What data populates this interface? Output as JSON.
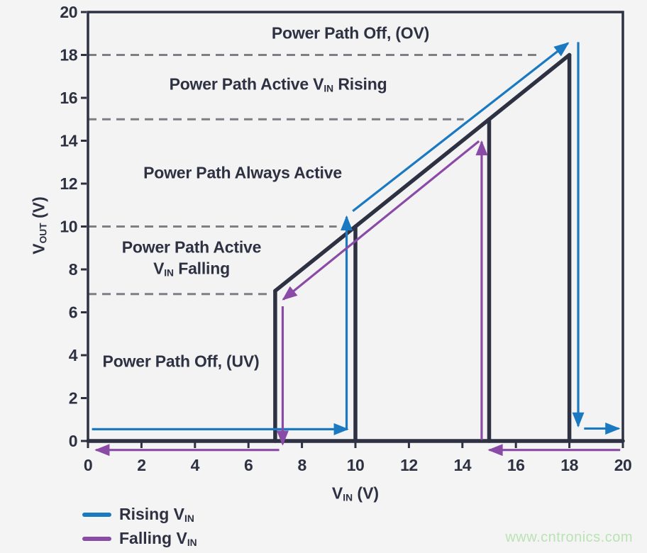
{
  "colors": {
    "navy": "#2d3142",
    "rising": "#1a79c0",
    "falling": "#8a4ba6",
    "dashed": "#7d7f85",
    "plot_bg": "#f4f3f4",
    "page_bg": "#f5f4f5",
    "watermark": "#b9e3b4"
  },
  "watermark": {
    "text": "www.cntronics.com"
  },
  "axis": {
    "x_label": {
      "pre": "V",
      "sub": "IN",
      "post": " (V)"
    },
    "y_label": {
      "pre": "V",
      "sub": "OUT",
      "post": " (V)"
    }
  },
  "annotations": {
    "ov": {
      "text": "Power Path Off, (OV)"
    },
    "rising": {
      "pre": "Power Path Active V",
      "sub": "IN",
      "post": " Rising"
    },
    "always": {
      "text": "Power Path Always Active"
    },
    "falling_l1": {
      "text": "Power Path Active"
    },
    "falling_l2": {
      "pre": "V",
      "sub": "IN",
      "post": " Falling"
    },
    "uv": {
      "text": "Power Path Off, (UV)"
    }
  },
  "legend": {
    "items": [
      {
        "key": "rising",
        "pre": "Rising V",
        "sub": "IN"
      },
      {
        "key": "falling",
        "pre": "Falling V",
        "sub": "IN"
      }
    ]
  },
  "chart_data": {
    "type": "line",
    "title": "",
    "xlabel": "VIN (V)",
    "ylabel": "VOUT (V)",
    "xlim": [
      0,
      20
    ],
    "ylim": [
      0,
      20
    ],
    "xticks": [
      0,
      2,
      4,
      6,
      8,
      10,
      12,
      14,
      16,
      18,
      20
    ],
    "yticks": [
      0,
      2,
      4,
      6,
      8,
      10,
      12,
      14,
      16,
      18,
      20
    ],
    "grid": "horizontal dashed threshold lines only",
    "legend_position": "bottom-left",
    "thresholds": {
      "uv_falling_V": 7,
      "uv_rising_V": 10,
      "ov_falling_V": 15,
      "ov_rising_V": 18
    },
    "regions": [
      "Power Path Off, (OV)",
      "Power Path Active VIN Rising",
      "Power Path Always Active",
      "Power Path Active VIN Falling",
      "Power Path Off, (UV)"
    ],
    "dashed_lines": [
      {
        "y": 18,
        "x_start": 0,
        "x_end": 16.8
      },
      {
        "y": 15,
        "x_start": 0,
        "x_end": 14.05
      },
      {
        "y": 10,
        "x_start": 0,
        "x_end": 9.3
      },
      {
        "y": 6.85,
        "x_start": 0,
        "x_end": 6.7
      }
    ],
    "trace_segments": [
      {
        "points": [
          [
            0,
            0
          ],
          [
            20,
            0
          ]
        ]
      },
      {
        "points": [
          [
            7,
            0
          ],
          [
            7,
            7
          ]
        ]
      },
      {
        "points": [
          [
            10,
            0
          ],
          [
            10,
            10
          ]
        ]
      },
      {
        "points": [
          [
            15,
            0
          ],
          [
            15,
            15
          ]
        ]
      },
      {
        "points": [
          [
            18,
            0
          ],
          [
            18,
            18
          ]
        ]
      },
      {
        "points": [
          [
            7,
            7
          ],
          [
            18,
            18
          ]
        ]
      }
    ],
    "series": [
      {
        "name": "Rising VIN",
        "color_key": "rising",
        "arrows": [
          {
            "from": [
              0.15,
              0.55
            ],
            "to": [
              9.7,
              0.55
            ]
          },
          {
            "from": [
              9.67,
              0.55
            ],
            "to": [
              9.67,
              10.45
            ]
          },
          {
            "from": [
              9.9,
              10.72
            ],
            "to": [
              17.95,
              18.55
            ]
          },
          {
            "from": [
              18.33,
              18.6
            ],
            "to": [
              18.33,
              0.7
            ]
          },
          {
            "from": [
              18.55,
              0.58
            ],
            "to": [
              19.85,
              0.58
            ]
          }
        ]
      },
      {
        "name": "Falling VIN",
        "color_key": "falling",
        "arrows": [
          {
            "from": [
              19.9,
              -0.42
            ],
            "to": [
              15.0,
              -0.42
            ]
          },
          {
            "from": [
              14.72,
              0.05
            ],
            "to": [
              14.72,
              13.95
            ]
          },
          {
            "from": [
              14.62,
              13.98
            ],
            "to": [
              7.3,
              6.6
            ]
          },
          {
            "from": [
              7.28,
              6.28
            ],
            "to": [
              7.28,
              -0.15
            ]
          },
          {
            "from": [
              7.15,
              -0.42
            ],
            "to": [
              0.3,
              -0.42
            ]
          }
        ]
      }
    ]
  }
}
